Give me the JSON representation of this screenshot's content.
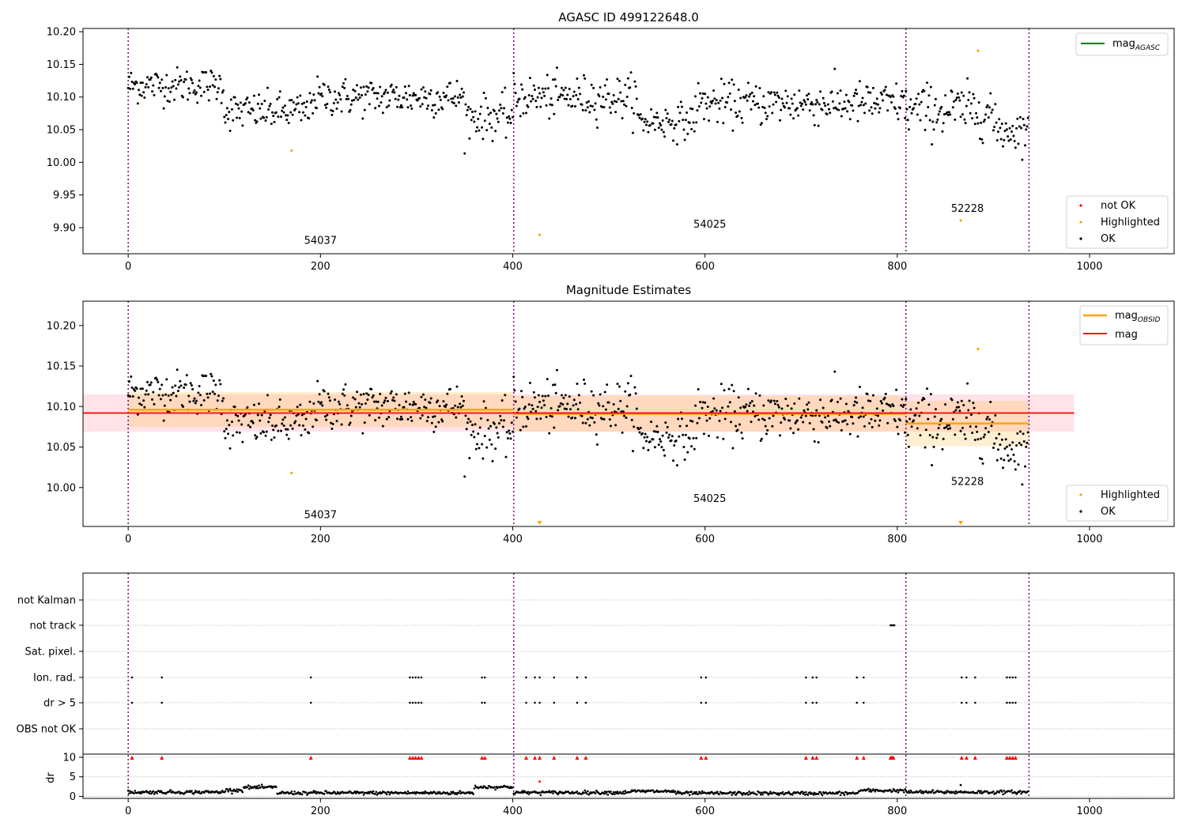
{
  "figure_title": "AGASC ID 499122648.0",
  "colors": {
    "ok": "#000000",
    "highlighted": "#ffa500",
    "not_ok": "#ff0000",
    "agasc_line": "#008000",
    "mag_line": "#ff0000",
    "obs_band": "#ffa500",
    "mag_band": "#ffc0cb",
    "vline": "#800080",
    "grid": "#b0b0b0"
  },
  "chart_data": [
    {
      "id": "panel1",
      "type": "scatter",
      "title": "AGASC ID 499122648.0",
      "xlim": [
        -47,
        1088
      ],
      "ylim": [
        9.86,
        10.205
      ],
      "xticks": [
        0,
        200,
        400,
        600,
        800,
        1000
      ],
      "yticks": [
        9.9,
        9.95,
        10.0,
        10.05,
        10.1,
        10.15,
        10.2
      ],
      "yticklabels": [
        "9.90",
        "9.95",
        "10.00",
        "10.05",
        "10.10",
        "10.15",
        "10.20"
      ],
      "obsid_boundaries": [
        0,
        401,
        809,
        937
      ],
      "obsid_labels": [
        {
          "text": "54037",
          "x": 200,
          "y": 9.875
        },
        {
          "text": "54025",
          "x": 605,
          "y": 9.9
        },
        {
          "text": "52228",
          "x": 873,
          "y": 9.924
        }
      ],
      "legend_top": {
        "position": "top-right",
        "entries": [
          {
            "label": "mag",
            "sub": "AGASC",
            "kind": "line",
            "color": "#008000"
          }
        ]
      },
      "legend_bottom": {
        "position": "bottom-right",
        "entries": [
          {
            "label": "not OK",
            "kind": "dot",
            "color": "#ff0000"
          },
          {
            "label": "Highlighted",
            "kind": "dot",
            "color": "#ffa500"
          },
          {
            "label": "OK",
            "kind": "dot",
            "color": "#000000"
          }
        ]
      },
      "highlighted_points": [
        [
          170,
          10.018
        ],
        [
          428,
          9.889
        ],
        [
          866,
          9.911
        ],
        [
          884,
          10.171
        ]
      ],
      "ok_series_model": {
        "x_range": [
          0,
          937
        ],
        "segments": [
          {
            "x": [
              0,
              100
            ],
            "mean": 10.118,
            "noise": 0.015
          },
          {
            "x": [
              100,
              190
            ],
            "mean": 10.078,
            "noise": 0.016
          },
          {
            "x": [
              190,
              350
            ],
            "mean": 10.1,
            "noise": 0.016
          },
          {
            "x": [
              350,
              401
            ],
            "mean": 10.07,
            "noise": 0.018
          },
          {
            "x": [
              401,
              530
            ],
            "mean": 10.1,
            "noise": 0.018
          },
          {
            "x": [
              530,
              590
            ],
            "mean": 10.063,
            "noise": 0.015
          },
          {
            "x": [
              590,
              809
            ],
            "mean": 10.09,
            "noise": 0.018
          },
          {
            "x": [
              809,
              900
            ],
            "mean": 10.08,
            "noise": 0.022
          },
          {
            "x": [
              900,
              937
            ],
            "mean": 10.05,
            "noise": 0.018
          }
        ]
      }
    },
    {
      "id": "panel2",
      "type": "scatter",
      "title": "Magnitude Estimates",
      "xlim": [
        -47,
        1088
      ],
      "ylim": [
        9.952,
        10.23
      ],
      "xticks": [
        0,
        200,
        400,
        600,
        800,
        1000
      ],
      "yticks": [
        10.0,
        10.05,
        10.1,
        10.15,
        10.2
      ],
      "yticklabels": [
        "10.00",
        "10.05",
        "10.10",
        "10.15",
        "10.20"
      ],
      "obsid_boundaries": [
        0,
        401,
        809,
        937
      ],
      "obsid_labels": [
        {
          "text": "54037",
          "x": 200,
          "y": 9.962
        },
        {
          "text": "54025",
          "x": 605,
          "y": 9.982
        },
        {
          "text": "52228",
          "x": 873,
          "y": 10.003
        }
      ],
      "mag": 10.092,
      "mag_band": [
        10.069,
        10.115
      ],
      "mag_span_x": [
        -47,
        984
      ],
      "obsid_mags": [
        {
          "x": [
            0,
            401
          ],
          "mag": 10.096,
          "band": [
            10.075,
            10.118
          ]
        },
        {
          "x": [
            401,
            809
          ],
          "mag": 10.091,
          "band": [
            10.069,
            10.113
          ]
        },
        {
          "x": [
            809,
            937
          ],
          "mag": 10.079,
          "band": [
            10.051,
            10.107
          ]
        }
      ],
      "legend_top": {
        "position": "top-right",
        "entries": [
          {
            "label": "mag",
            "sub": "OBSID",
            "kind": "line",
            "color": "#ffa500"
          },
          {
            "label": "mag",
            "sub": "",
            "kind": "line",
            "color": "#ff0000"
          }
        ]
      },
      "legend_bottom": {
        "position": "bottom-right",
        "entries": [
          {
            "label": "Highlighted",
            "kind": "dot",
            "color": "#ffa500"
          },
          {
            "label": "OK",
            "kind": "dot",
            "color": "#000000"
          }
        ]
      },
      "highlighted_points": [
        [
          170,
          10.018
        ],
        [
          884,
          10.171
        ]
      ],
      "offscale_markers": [
        428,
        866
      ]
    },
    {
      "id": "panel3",
      "type": "scatter",
      "xlim": [
        -47,
        1088
      ],
      "xticks": [
        0,
        200,
        400,
        600,
        800,
        1000
      ],
      "obsid_boundaries": [
        0,
        401,
        809,
        937
      ],
      "flag_rows": [
        "not Kalman",
        "not track",
        "Sat. pixel.",
        "Ion. rad.",
        "dr > 5",
        "OBS not OK"
      ],
      "flags": {
        "not Kalman": [],
        "not track": [
          793,
          794,
          795,
          796,
          797
        ],
        "Sat. pixel.": [],
        "Ion. rad.": [
          4,
          35,
          190,
          293,
          296,
          299,
          302,
          305,
          368,
          371,
          414,
          423,
          428,
          443,
          467,
          476,
          596,
          601,
          705,
          712,
          716,
          758,
          765,
          867,
          872,
          881,
          914,
          917,
          920,
          923
        ],
        "dr > 5": [
          4,
          35,
          190,
          293,
          296,
          299,
          302,
          305,
          368,
          371,
          414,
          423,
          428,
          443,
          467,
          476,
          596,
          601,
          705,
          712,
          716,
          758,
          765,
          867,
          872,
          881,
          914,
          917,
          920,
          923
        ],
        "OBS not OK": []
      },
      "dr_label": "dr",
      "dr_ylim": [
        -0.5,
        10.8
      ],
      "dr_yticks": [
        0,
        5,
        10
      ],
      "dr_clipped_markers": [
        4,
        35,
        190,
        293,
        296,
        299,
        302,
        305,
        368,
        371,
        414,
        423,
        428,
        443,
        467,
        476,
        596,
        601,
        705,
        712,
        716,
        758,
        765,
        793,
        794,
        795,
        796,
        867,
        872,
        881,
        914,
        917,
        920,
        923
      ],
      "dr_extra_points": [
        [
          428,
          3.8,
          "red"
        ],
        [
          866,
          2.9,
          "black"
        ]
      ],
      "dr_segments": [
        {
          "x": [
            0,
            100
          ],
          "mean": 1.1
        },
        {
          "x": [
            100,
            120
          ],
          "mean": 1.6
        },
        {
          "x": [
            120,
            155
          ],
          "mean": 2.3
        },
        {
          "x": [
            155,
            360
          ],
          "mean": 0.9
        },
        {
          "x": [
            360,
            401
          ],
          "mean": 2.4
        },
        {
          "x": [
            401,
            520
          ],
          "mean": 1.0
        },
        {
          "x": [
            520,
            570
          ],
          "mean": 1.3
        },
        {
          "x": [
            570,
            760
          ],
          "mean": 0.8
        },
        {
          "x": [
            760,
            809
          ],
          "mean": 1.5
        },
        {
          "x": [
            809,
            937
          ],
          "mean": 1.1
        }
      ]
    }
  ]
}
